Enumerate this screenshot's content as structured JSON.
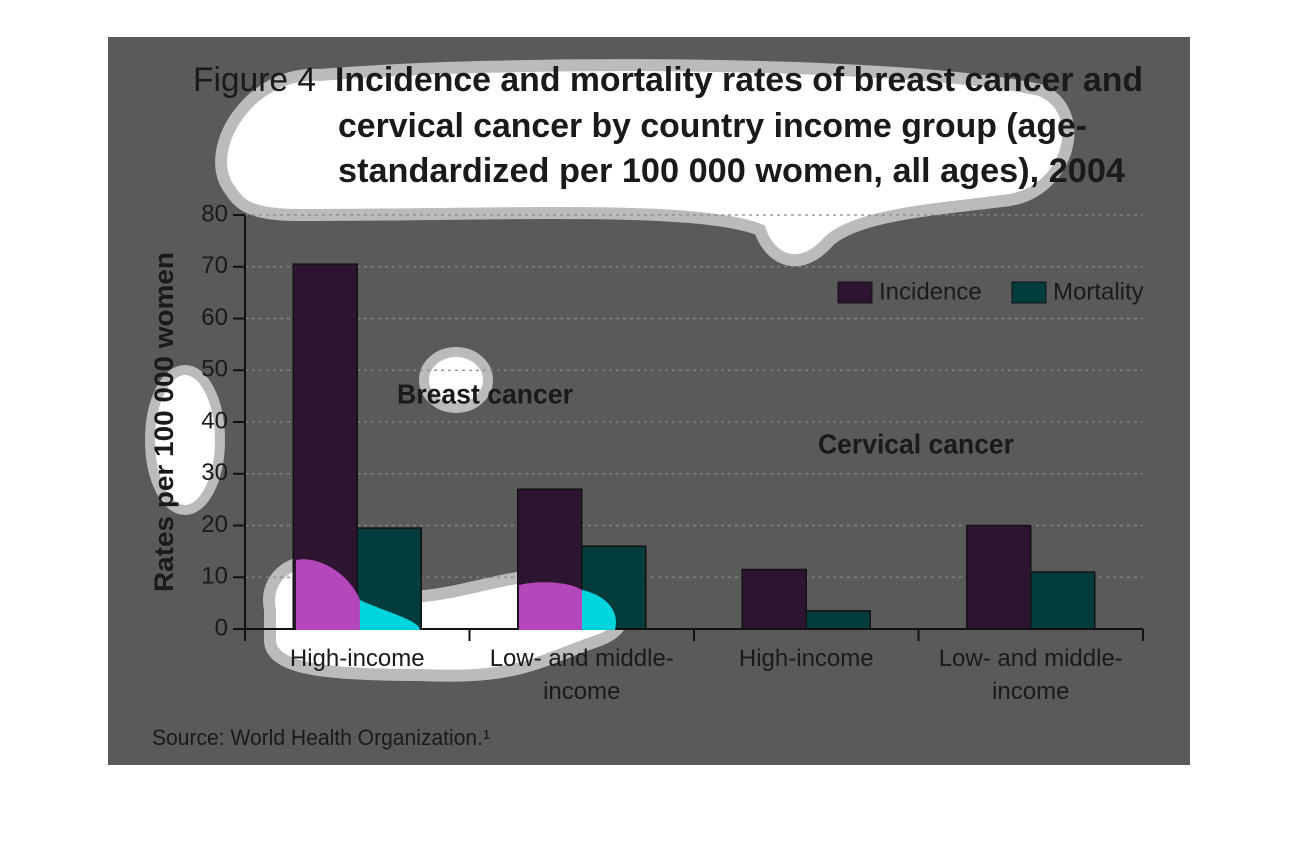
{
  "chart_data": {
    "type": "bar",
    "figure_label": "Figure 4",
    "title": [
      "Incidence and mortality rates of breast cancer and",
      "cervical cancer by country income group (age-",
      "standardized per 100 000 women, all ages), 2004"
    ],
    "ylabel": "Rates per 100 000 women",
    "categories": [
      [
        "High-income"
      ],
      [
        "Low- and middle-",
        "income"
      ],
      [
        "High-income"
      ],
      [
        "Low- and middle-",
        "income"
      ]
    ],
    "series": [
      {
        "name": "Incidence",
        "color": "#2d1431",
        "values": [
          70.5,
          27,
          11.5,
          20
        ]
      },
      {
        "name": "Mortality",
        "color": "#023c3d",
        "values": [
          19.5,
          16,
          3.5,
          11
        ]
      }
    ],
    "annotations": [
      "Breast cancer",
      "Cervical cancer"
    ],
    "source": "Source: World Health Organization.¹",
    "ylim": [
      0,
      80
    ],
    "yticks": [
      0,
      10,
      20,
      30,
      40,
      50,
      60,
      70,
      80
    ],
    "grid": true,
    "legend": "upper right"
  }
}
